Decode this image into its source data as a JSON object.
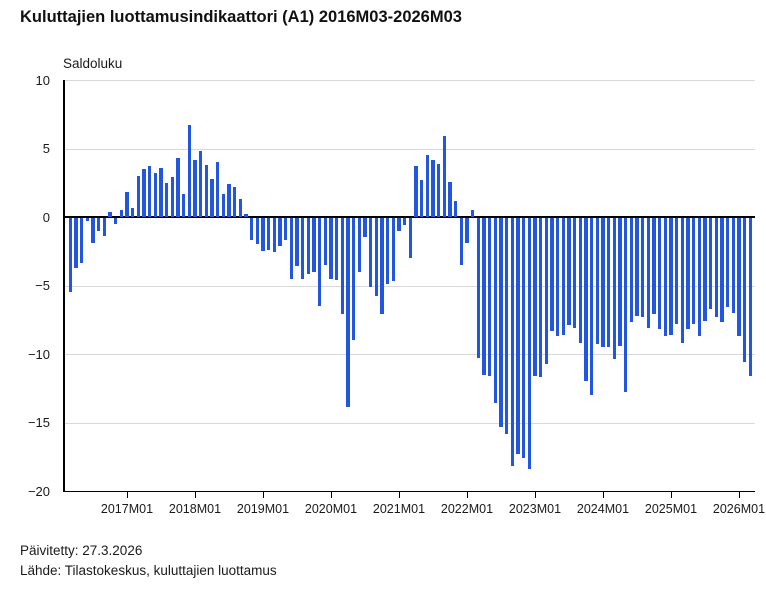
{
  "header": {
    "title": "Kuluttajien luottamusindikaattori (A1) 2016M03-2026M03"
  },
  "footer": {
    "updated": "Päivitetty: 27.3.2026",
    "source": "Lähde: Tilastokeskus, kuluttajien luottamus"
  },
  "colors": {
    "bar": "#2256e0",
    "grid": "#d9d9d9",
    "zero_line": "#000000",
    "axis": "#000000",
    "text": "#1a1a1a"
  },
  "chart_data": {
    "type": "bar",
    "title": "Kuluttajien luottamusindikaattori (A1) 2016M03-2026M03",
    "ylabel": "Saldoluku",
    "xlabel": "",
    "start": "2016M03",
    "end": "2026M03",
    "ylim": [
      -20,
      10
    ],
    "grid": true,
    "legend": false,
    "yticks": [
      10,
      5,
      0,
      -5,
      -10,
      -15,
      -20
    ],
    "y_tick_labels": [
      "10",
      "5",
      "0",
      "−5",
      "−10",
      "−15",
      "−20"
    ],
    "x_tick_labels": [
      "2017M01",
      "2018M01",
      "2019M01",
      "2020M01",
      "2021M01",
      "2022M01",
      "2023M01",
      "2024M01",
      "2025M01",
      "2026M01"
    ],
    "x": [
      "2016M03",
      "2016M04",
      "2016M05",
      "2016M06",
      "2016M07",
      "2016M08",
      "2016M09",
      "2016M10",
      "2016M11",
      "2016M12",
      "2017M01",
      "2017M02",
      "2017M03",
      "2017M04",
      "2017M05",
      "2017M06",
      "2017M07",
      "2017M08",
      "2017M09",
      "2017M10",
      "2017M11",
      "2017M12",
      "2018M01",
      "2018M02",
      "2018M03",
      "2018M04",
      "2018M05",
      "2018M06",
      "2018M07",
      "2018M08",
      "2018M09",
      "2018M10",
      "2018M11",
      "2018M12",
      "2019M01",
      "2019M02",
      "2019M03",
      "2019M04",
      "2019M05",
      "2019M06",
      "2019M07",
      "2019M08",
      "2019M09",
      "2019M10",
      "2019M11",
      "2019M12",
      "2020M01",
      "2020M02",
      "2020M03",
      "2020M04",
      "2020M05",
      "2020M06",
      "2020M07",
      "2020M08",
      "2020M09",
      "2020M10",
      "2020M11",
      "2020M12",
      "2021M01",
      "2021M02",
      "2021M03",
      "2021M04",
      "2021M05",
      "2021M06",
      "2021M07",
      "2021M08",
      "2021M09",
      "2021M10",
      "2021M11",
      "2021M12",
      "2022M01",
      "2022M02",
      "2022M03",
      "2022M04",
      "2022M05",
      "2022M06",
      "2022M07",
      "2022M08",
      "2022M09",
      "2022M10",
      "2022M11",
      "2022M12",
      "2023M01",
      "2023M02",
      "2023M03",
      "2023M04",
      "2023M05",
      "2023M06",
      "2023M07",
      "2023M08",
      "2023M09",
      "2023M10",
      "2023M11",
      "2023M12",
      "2024M01",
      "2024M02",
      "2024M03",
      "2024M04",
      "2024M05",
      "2024M06",
      "2024M07",
      "2024M08",
      "2024M09",
      "2024M10",
      "2024M11",
      "2024M12",
      "2025M01",
      "2025M02",
      "2025M03",
      "2025M04",
      "2025M05",
      "2025M06",
      "2025M07",
      "2025M08",
      "2025M09",
      "2025M10",
      "2025M11",
      "2025M12",
      "2026M01",
      "2026M02",
      "2026M03"
    ],
    "values": [
      -5.4,
      -3.6,
      -3.3,
      -0.2,
      -1.8,
      -0.9,
      -1.3,
      0.4,
      -0.4,
      0.5,
      1.8,
      0.7,
      3.0,
      3.5,
      3.7,
      3.2,
      3.6,
      2.5,
      2.9,
      4.3,
      1.7,
      6.7,
      4.2,
      4.8,
      3.8,
      2.8,
      4.0,
      1.7,
      2.4,
      2.2,
      1.3,
      0.2,
      -1.6,
      -1.9,
      -2.4,
      -2.3,
      -2.5,
      -2.0,
      -1.6,
      -4.4,
      -3.5,
      -4.4,
      -4.1,
      -3.9,
      -6.4,
      -3.4,
      -4.4,
      -4.5,
      -7.0,
      -13.8,
      -8.9,
      -3.9,
      -1.4,
      -5.0,
      -5.7,
      -7.0,
      -4.8,
      -4.6,
      -0.9,
      -0.5,
      -2.9,
      3.7,
      2.7,
      4.5,
      4.2,
      3.9,
      5.9,
      2.6,
      1.2,
      -3.4,
      -1.8,
      0.5,
      -10.2,
      -11.4,
      -11.5,
      -13.5,
      -15.2,
      -15.7,
      -18.1,
      -17.2,
      -17.5,
      -18.3,
      -11.5,
      -11.6,
      -10.6,
      -8.2,
      -8.6,
      -8.5,
      -7.8,
      -8.0,
      -9.1,
      -11.9,
      -12.9,
      -9.2,
      -9.4,
      -9.4,
      -10.3,
      -9.3,
      -12.7,
      -7.6,
      -7.1,
      -7.2,
      -8.0,
      -7.0,
      -8.1,
      -8.6,
      -8.5,
      -7.7,
      -9.1,
      -8.1,
      -7.7,
      -8.6,
      -7.5,
      -6.6,
      -7.2,
      -7.6,
      -6.5,
      -6.9,
      -8.6,
      -10.5,
      -11.5
    ]
  }
}
